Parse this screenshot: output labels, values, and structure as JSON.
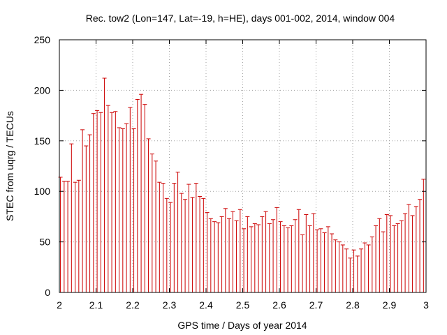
{
  "chart_data": {
    "type": "scatter",
    "title": "Rec. tow2 (Lon=147, Lat=-19, h=HE), days 001-002, 2014, window 004",
    "xlabel": "GPS time / Days of year 2014",
    "ylabel": "STEC from uqrg / TECUs",
    "xlim": [
      2.0,
      3.0
    ],
    "ylim": [
      0,
      250
    ],
    "xticks": [
      2,
      2.1,
      2.2,
      2.3,
      2.4,
      2.5,
      2.6,
      2.7,
      2.8,
      2.9,
      3
    ],
    "xtick_labels": [
      "2",
      "2.1",
      "2.2",
      "2.3",
      "2.4",
      "2.5",
      "2.6",
      "2.7",
      "2.8",
      "2.9",
      "3"
    ],
    "yticks": [
      0,
      50,
      100,
      150,
      200,
      250
    ],
    "ytick_labels": [
      "0",
      "50",
      "100",
      "150",
      "200",
      "250"
    ],
    "grid": true,
    "error_bars": "from zero to value",
    "series": [
      {
        "name": "STEC",
        "color": "#cc0000",
        "x": [
          2.003,
          2.013,
          2.023,
          2.033,
          2.043,
          2.053,
          2.063,
          2.073,
          2.083,
          2.093,
          2.103,
          2.113,
          2.123,
          2.133,
          2.143,
          2.153,
          2.163,
          2.173,
          2.183,
          2.193,
          2.203,
          2.213,
          2.223,
          2.233,
          2.243,
          2.253,
          2.263,
          2.273,
          2.283,
          2.293,
          2.303,
          2.313,
          2.323,
          2.333,
          2.343,
          2.353,
          2.363,
          2.373,
          2.383,
          2.393,
          2.403,
          2.413,
          2.423,
          2.433,
          2.443,
          2.453,
          2.463,
          2.473,
          2.483,
          2.493,
          2.503,
          2.513,
          2.523,
          2.533,
          2.543,
          2.553,
          2.563,
          2.573,
          2.583,
          2.593,
          2.603,
          2.613,
          2.623,
          2.633,
          2.643,
          2.653,
          2.663,
          2.673,
          2.683,
          2.693,
          2.703,
          2.713,
          2.723,
          2.733,
          2.743,
          2.753,
          2.763,
          2.773,
          2.783,
          2.793,
          2.803,
          2.813,
          2.823,
          2.833,
          2.843,
          2.853,
          2.863,
          2.873,
          2.883,
          2.893,
          2.903,
          2.913,
          2.923,
          2.933,
          2.943,
          2.953,
          2.963,
          2.973,
          2.983,
          2.993
        ],
        "y": [
          114,
          110,
          110,
          147,
          109,
          111,
          161,
          145,
          156,
          177,
          180,
          178,
          212,
          185,
          178,
          179,
          163,
          162,
          167,
          183,
          162,
          191,
          196,
          186,
          152,
          137,
          130,
          109,
          108,
          93,
          89,
          108,
          119,
          98,
          92,
          107,
          94,
          108,
          95,
          93,
          79,
          73,
          70,
          69,
          75,
          83,
          73,
          80,
          71,
          82,
          63,
          75,
          65,
          68,
          67,
          75,
          80,
          68,
          72,
          84,
          70,
          66,
          64,
          66,
          72,
          82,
          57,
          77,
          66,
          78,
          62,
          63,
          59,
          65,
          58,
          52,
          50,
          47,
          43,
          34,
          42,
          36,
          43,
          49,
          47,
          55,
          66,
          73,
          60,
          77,
          76,
          66,
          68,
          71,
          78,
          87,
          76,
          85,
          92,
          112
        ]
      }
    ]
  }
}
